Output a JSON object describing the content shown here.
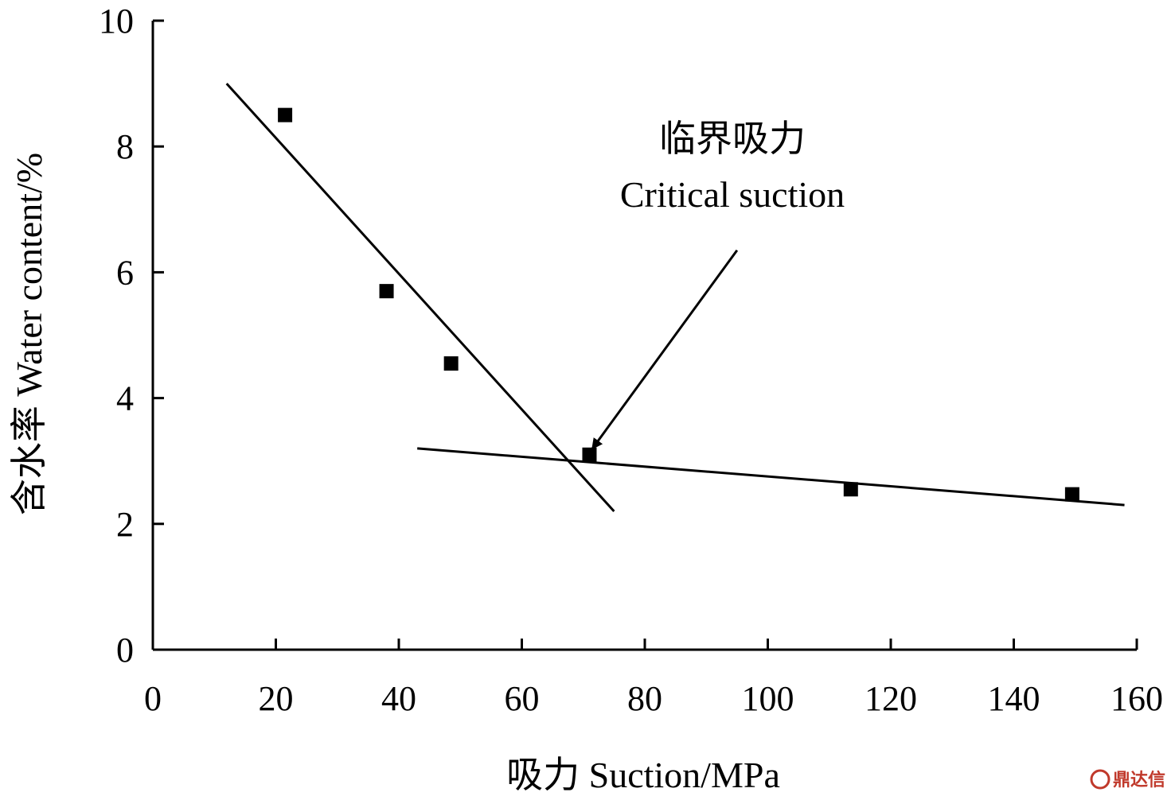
{
  "chart_data": {
    "type": "scatter",
    "title": "",
    "xlabel": "吸力 Suction/MPa",
    "ylabel": "含水率 Water content/%",
    "xlim": [
      0,
      160
    ],
    "ylim": [
      0,
      10
    ],
    "x_ticks": [
      0,
      20,
      40,
      60,
      80,
      100,
      120,
      140,
      160
    ],
    "y_ticks": [
      0,
      2,
      4,
      6,
      8,
      10
    ],
    "grid": false,
    "series": [
      {
        "type": "scatter",
        "marker": "square",
        "x": [
          21.5,
          38,
          48.5,
          71,
          113.5,
          149.5
        ],
        "y": [
          8.5,
          5.7,
          4.55,
          3.1,
          2.55,
          2.47
        ]
      }
    ],
    "fit_lines": [
      {
        "x": [
          12,
          75
        ],
        "y": [
          9.0,
          2.2
        ]
      },
      {
        "x": [
          43,
          158
        ],
        "y": [
          3.2,
          2.3
        ]
      }
    ],
    "annotations": [
      {
        "text_cn": "临界吸力",
        "text_en": "Critical suction",
        "arrow_from": [
          95,
          6.35
        ],
        "arrow_to": [
          71.5,
          3.2
        ]
      }
    ]
  },
  "watermark": "鼎达信"
}
